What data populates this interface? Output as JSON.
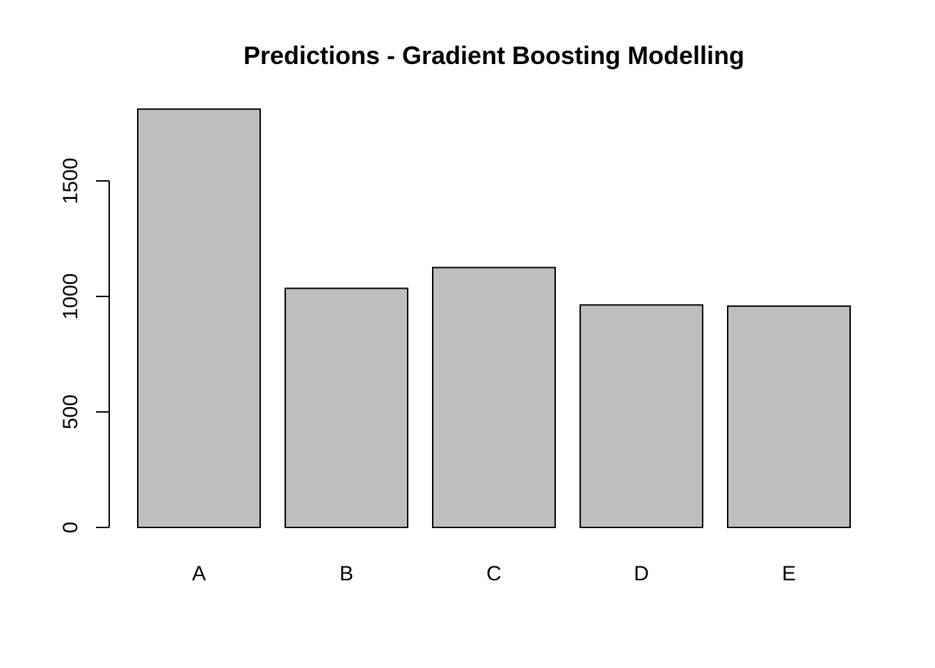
{
  "chart_data": {
    "type": "bar",
    "title": "Predictions - Gradient Boosting Modelling",
    "xlabel": "",
    "ylabel": "",
    "categories": [
      "A",
      "B",
      "C",
      "D",
      "E"
    ],
    "values": [
      1811,
      1035,
      1125,
      963,
      958
    ],
    "ylim": [
      0,
      1850
    ],
    "yticks": [
      0,
      500,
      1000,
      1500
    ],
    "ytick_labels": [
      "0",
      "500",
      "1000",
      "1500"
    ],
    "grid": false,
    "legend": "none",
    "bar_color": "#bebebe",
    "bar_edge_color": "#000000"
  }
}
